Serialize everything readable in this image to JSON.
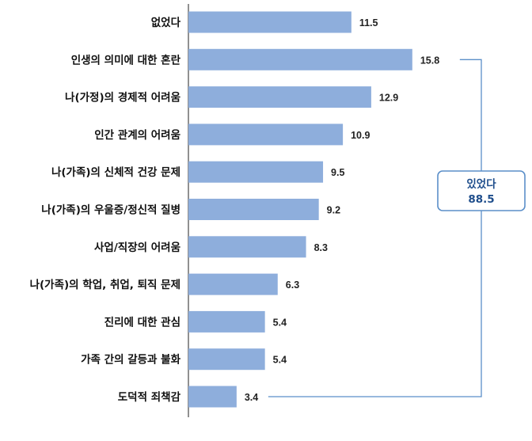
{
  "chart_data": {
    "type": "bar",
    "orientation": "horizontal",
    "categories": [
      "없었다",
      "인생의 의미에 대한 혼란",
      "나(가정)의 경제적 어려움",
      "인간 관계의 어려움",
      "나(가족)의 신체적 건강 문제",
      "나(가족)의 우울증/정신적 질병",
      "사업/직장의 어려움",
      "나(가족)의 학업, 취업, 퇴직 문제",
      "진리에 대한 관심",
      "가족 간의 갈등과 불화",
      "도덕적 죄책감"
    ],
    "values": [
      11.5,
      15.8,
      12.9,
      10.9,
      9.5,
      9.2,
      8.3,
      6.3,
      5.4,
      5.4,
      3.4
    ],
    "value_labels": [
      "11.5",
      "15.8",
      "12.9",
      "10.9",
      "9.5",
      "9.2",
      "8.3",
      "6.3",
      "5.4",
      "5.4",
      "3.4"
    ],
    "bar_color": "#8eaedc",
    "axis_color": "#555555",
    "bracket_color": "#5b8fc9",
    "callout": {
      "line1": "있었다",
      "line2": "88.5",
      "border_color": "#5b8fc9",
      "text_color": "#1f4e8c",
      "spans_categories": [
        "인생의 의미에 대한 혼란",
        "도덕적 죄책감"
      ]
    }
  }
}
